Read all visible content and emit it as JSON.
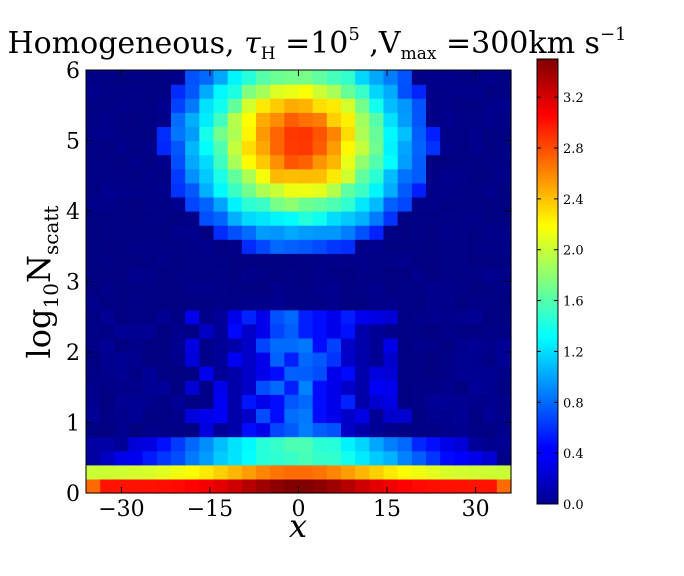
{
  "chart_data": {
    "type": "heatmap",
    "title": "Homogeneous, τ_H = 10^5 , V_max = 300km s^-1",
    "title_parts": {
      "prefix": "Homogeneous, ",
      "tau": "τ",
      "tau_sub": "H",
      "eq1": " =10",
      "exp1": "5",
      "mid": " ,V",
      "vmax_sub": "max",
      "eq2": " =300km s",
      "exp2": "−1"
    },
    "xlabel": "x",
    "ylabel_parts": {
      "main": "log",
      "sub1": "10",
      "main2": "N",
      "sub2": "scatt"
    },
    "xlim": [
      -36,
      36
    ],
    "ylim": [
      0,
      6
    ],
    "x_ticks": [
      -30,
      -15,
      0,
      15,
      30
    ],
    "x_tick_labels": [
      "−30",
      "−15",
      "0",
      "15",
      "30"
    ],
    "y_ticks": [
      0,
      1,
      2,
      3,
      4,
      5,
      6
    ],
    "y_tick_labels": [
      "0",
      "1",
      "2",
      "3",
      "4",
      "5",
      "6"
    ],
    "colorbar": {
      "colormap": "jet",
      "range": [
        0.0,
        3.5
      ],
      "ticks": [
        0.0,
        0.4,
        0.8,
        1.2,
        1.6,
        2.0,
        2.4,
        2.8,
        3.2
      ],
      "tick_labels": [
        "0.0",
        "0.4",
        "0.8",
        "1.2",
        "1.6",
        "2.0",
        "2.4",
        "2.8",
        "3.2"
      ]
    },
    "grid": false,
    "grid_shape": {
      "columns": 30,
      "rows": 30
    }
  }
}
